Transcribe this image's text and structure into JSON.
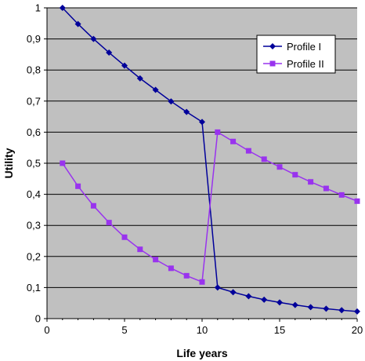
{
  "chart_data": {
    "type": "line",
    "xlabel": "Life years",
    "ylabel": "Utility",
    "xlim": [
      0,
      20
    ],
    "ylim": [
      0,
      1
    ],
    "xticks": [
      0,
      5,
      10,
      15,
      20
    ],
    "yticks": [
      0,
      0.1,
      0.2,
      0.3,
      0.4,
      0.5,
      0.6,
      0.7,
      0.8,
      0.9,
      1
    ],
    "ytick_labels": [
      "0",
      "0,1",
      "0,2",
      "0,3",
      "0,4",
      "0,5",
      "0,6",
      "0,7",
      "0,8",
      "0,9",
      "1"
    ],
    "xtick_labels": [
      "0",
      "5",
      "10",
      "15",
      "20"
    ],
    "grid": "horizontal",
    "legend_position": "top-right",
    "plot_background": "#c0c0c0",
    "x": [
      1,
      2,
      3,
      4,
      5,
      6,
      7,
      8,
      9,
      10,
      11,
      12,
      13,
      14,
      15,
      16,
      17,
      18,
      19,
      20
    ],
    "series": [
      {
        "name": "Profile I",
        "color": "#00009a",
        "marker": "diamond",
        "values": [
          1.0,
          0.948,
          0.9,
          0.856,
          0.814,
          0.773,
          0.736,
          0.699,
          0.665,
          0.633,
          0.1,
          0.085,
          0.072,
          0.061,
          0.052,
          0.044,
          0.037,
          0.032,
          0.027,
          0.023
        ]
      },
      {
        "name": "Profile II",
        "color": "#9933ee",
        "marker": "square",
        "values": [
          0.5,
          0.426,
          0.363,
          0.309,
          0.262,
          0.223,
          0.19,
          0.162,
          0.138,
          0.118,
          0.6,
          0.57,
          0.54,
          0.513,
          0.488,
          0.463,
          0.44,
          0.419,
          0.398,
          0.378
        ]
      }
    ]
  }
}
